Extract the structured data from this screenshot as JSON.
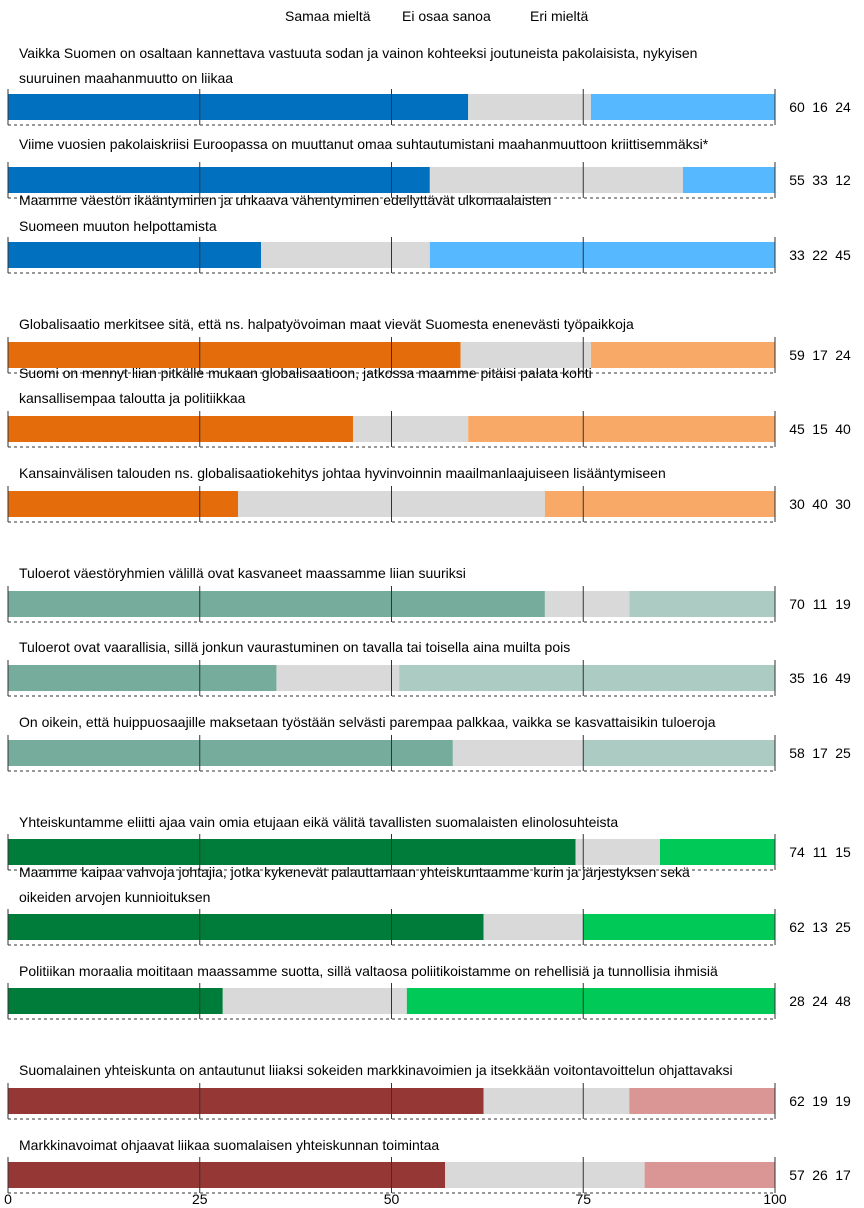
{
  "chart_data": {
    "type": "bar",
    "orientation": "horizontal",
    "stacked": true,
    "legend": [
      "Samaa mieltä",
      "Ei osaa sanoa",
      "Eri mieltä"
    ],
    "legend_position": "top",
    "xlim": [
      0,
      100
    ],
    "xticks": [
      "0",
      "25",
      "50",
      "75",
      "100"
    ],
    "groups": [
      {
        "colors": [
          "#0070bf",
          "#d9d9d9",
          "#56b8ff"
        ],
        "items": [
          {
            "label": "Vaikka Suomen on osaltaan kannettava vastuuta sodan ja vainon kohteeksi joutuneista pakolaisista, nykyisen suuruinen maahanmuutto on liikaa",
            "values": [
              60,
              16,
              24
            ]
          },
          {
            "label": "Viime vuosien pakolaiskriisi Euroopassa on muuttanut omaa suhtautumistani maahanmuuttoon kriittisemmäksi*",
            "values": [
              55,
              33,
              12
            ]
          },
          {
            "label": "Maamme väestön ikääntyminen ja uhkaava vähentyminen edellyttävät ulkomaalaisten Suomeen muuton helpottamista",
            "values": [
              33,
              22,
              45
            ]
          }
        ]
      },
      {
        "colors": [
          "#e46c0a",
          "#d9d9d9",
          "#f8a968"
        ],
        "items": [
          {
            "label": "Globalisaatio merkitsee sitä, että ns. halpatyövoiman maat vievät Suomesta enenevästi työpaikkoja",
            "values": [
              59,
              17,
              24
            ]
          },
          {
            "label": "Suomi on mennyt liian pitkälle mukaan globalisaatioon, jatkossa maamme pitäisi palata kohti kansallisempaa taloutta ja politiikkaa",
            "values": [
              45,
              15,
              40
            ]
          },
          {
            "label": "Kansainvälisen talouden ns. globalisaatiokehitys johtaa hyvinvoinnin maailmanlaajuiseen lisääntymiseen",
            "values": [
              30,
              40,
              30
            ]
          }
        ]
      },
      {
        "colors": [
          "#76ac9c",
          "#d9d9d9",
          "#acccc3"
        ],
        "items": [
          {
            "label": "Tuloerot väestöryhmien välillä ovat kasvaneet maassamme liian suuriksi",
            "values": [
              70,
              11,
              19
            ]
          },
          {
            "label": "Tuloerot ovat vaarallisia, sillä jonkun vaurastuminen on tavalla tai toisella aina muilta pois",
            "values": [
              35,
              16,
              49
            ]
          },
          {
            "label": "On oikein, että huippuosaajille maksetaan työstään selvästi parempaa palkkaa, vaikka se kasvattaisikin tuloeroja",
            "values": [
              58,
              17,
              25
            ]
          }
        ]
      },
      {
        "colors": [
          "#007c3a",
          "#d9d9d9",
          "#00c957"
        ],
        "items": [
          {
            "label": "Yhteiskuntamme eliitti ajaa vain omia etujaan eikä välitä tavallisten suomalaisten elinolosuhteista",
            "values": [
              74,
              11,
              15
            ]
          },
          {
            "label": "Maamme kaipaa vahvoja johtajia, jotka kykenevät palauttamaan yhteiskuntaamme kurin ja järjestyksen sekä oikeiden arvojen kunnioituksen",
            "values": [
              62,
              13,
              25
            ]
          },
          {
            "label": "Politiikan moraalia moititaan maassamme suotta, sillä valtaosa poliitikoistamme on rehellisiä ja tunnollisia ihmisiä",
            "values": [
              28,
              24,
              48
            ]
          }
        ]
      },
      {
        "colors": [
          "#953735",
          "#d9d9d9",
          "#d99694"
        ],
        "items": [
          {
            "label": "Suomalainen yhteiskunta on antautunut liiaksi sokeiden markkinavoimien ja itsekkään voitontavoittelun ohjattavaksi",
            "values": [
              62,
              19,
              19
            ]
          },
          {
            "label": "Markkinavoimat ohjaavat liikaa suomalaisen yhteiskunnan toimintaa",
            "values": [
              57,
              26,
              17
            ]
          }
        ]
      }
    ]
  }
}
